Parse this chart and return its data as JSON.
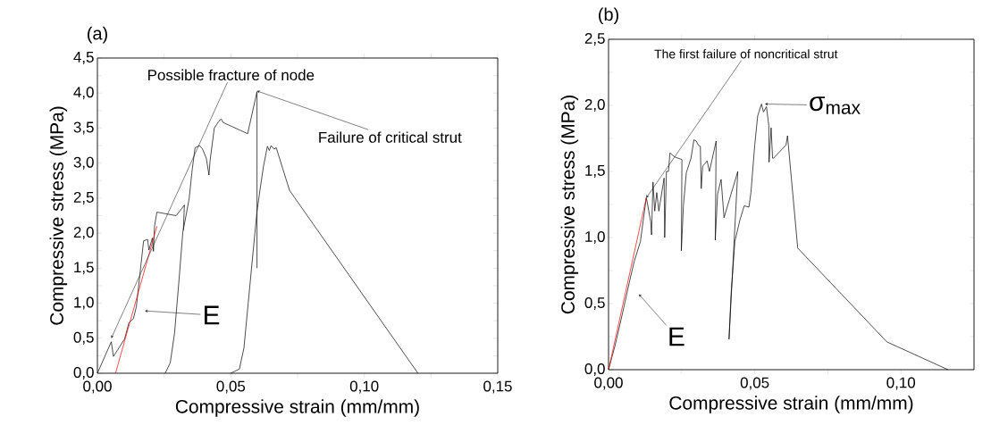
{
  "chart_data": [
    {
      "type": "line",
      "title": "(a)",
      "xlabel": "Compressive strain (mm/mm)",
      "ylabel": "Compressive stress (MPa)",
      "marker": "none",
      "line_style": "solid",
      "xlim": [
        0,
        0.15
      ],
      "ylim": [
        0,
        4.5
      ],
      "xticks": [
        {
          "value": 0,
          "label": "0,00"
        },
        {
          "value": 0.025,
          "label": null
        },
        {
          "value": 0.05,
          "label": "0,05"
        },
        {
          "value": 0.075,
          "label": null
        },
        {
          "value": 0.1,
          "label": "0,10"
        },
        {
          "value": 0.125,
          "label": null
        },
        {
          "value": 0.15,
          "label": "0,15"
        }
      ],
      "yticks": [
        {
          "value": 0,
          "label": "0,0"
        },
        {
          "value": 0.25,
          "label": null
        },
        {
          "value": 0.5,
          "label": "0,5"
        },
        {
          "value": 0.75,
          "label": null
        },
        {
          "value": 1,
          "label": "1,0"
        },
        {
          "value": 1.25,
          "label": null
        },
        {
          "value": 1.5,
          "label": "1,5"
        },
        {
          "value": 1.75,
          "label": null
        },
        {
          "value": 2,
          "label": "2,0"
        },
        {
          "value": 2.25,
          "label": null
        },
        {
          "value": 2.5,
          "label": "2,5"
        },
        {
          "value": 2.75,
          "label": null
        },
        {
          "value": 3,
          "label": "3,0"
        },
        {
          "value": 3.25,
          "label": null
        },
        {
          "value": 3.5,
          "label": "3,5"
        },
        {
          "value": 3.75,
          "label": null
        },
        {
          "value": 4,
          "label": "4,0"
        },
        {
          "value": 4.25,
          "label": null
        },
        {
          "value": 4.5,
          "label": "4,5"
        }
      ],
      "series": [
        {
          "color": "#000000",
          "x": [
            0,
            0.0052,
            0.006,
            0.0102,
            0.0118,
            0.0135,
            0.0146,
            0.0173,
            0.0188,
            0.0193,
            0.0206,
            0.021,
            0.0214,
            0.0223,
            0.0295,
            0.0326,
            0.0322
          ],
          "values": [
            0,
            0.45,
            0.24,
            0.49,
            0.72,
            0.78,
            0.95,
            1.89,
            1.91,
            1.76,
            1.93,
            1.74,
            2.1,
            2.3,
            2.25,
            2.4,
            2.04
          ]
        },
        {
          "color": "#000000",
          "x": [
            0.0254,
            0.0273,
            0.0289,
            0.0306,
            0.032,
            0.0333,
            0.0344,
            0.0355,
            0.0366,
            0.0383,
            0.0394,
            0.0408,
            0.0418,
            0.0422,
            0.0438,
            0.0455,
            0.0464,
            0.0471,
            0.0563,
            0.0598,
            0.0598
          ],
          "values": [
            0,
            0.15,
            0.57,
            1.34,
            2.01,
            2.27,
            2.5,
            2.9,
            3.22,
            3.25,
            3.2,
            3.07,
            2.83,
            3.03,
            3.5,
            3.6,
            3.63,
            3.58,
            3.42,
            4.02,
            1.5
          ]
        },
        {
          "color": "#000000",
          "x": [
            0.0499,
            0.0532,
            0.0549,
            0.0565,
            0.0582,
            0.0598,
            0.0609,
            0.0622,
            0.0637,
            0.0644,
            0.0651,
            0.0662,
            0.067,
            0.072,
            0.1201
          ],
          "values": [
            0,
            0.06,
            0.36,
            1.0,
            1.68,
            2.31,
            2.61,
            2.95,
            3.24,
            3.18,
            3.25,
            3.2,
            3.22,
            2.61,
            0
          ]
        },
        {
          "color": "#ff0000",
          "x": [
            0.0068,
            0.0223
          ],
          "values": [
            0,
            2.1
          ]
        }
      ],
      "annotations": [
        {
          "text": "Possible fracture of node",
          "x": 0.0052,
          "y": 0.5
        },
        {
          "text": "Failure of critical strut",
          "x": 0.0598,
          "y": 4.03
        },
        {
          "text": "E",
          "x": 0.0178,
          "y": 0.89
        }
      ]
    },
    {
      "type": "line",
      "title": "(b)",
      "xlabel": "Compressive strain (mm/mm)",
      "ylabel": "Compressive stress (MPa)",
      "marker": "none",
      "line_style": "solid",
      "xlim": [
        0,
        0.125
      ],
      "ylim": [
        0,
        2.5
      ],
      "xticks": [
        {
          "value": 0,
          "label": "0,00"
        },
        {
          "value": 0.025,
          "label": null
        },
        {
          "value": 0.05,
          "label": "0,05"
        },
        {
          "value": 0.075,
          "label": null
        },
        {
          "value": 0.1,
          "label": "0,10"
        }
      ],
      "yticks": [
        {
          "value": 0,
          "label": "0,0"
        },
        {
          "value": 0.25,
          "label": null
        },
        {
          "value": 0.5,
          "label": "0,5"
        },
        {
          "value": 0.75,
          "label": null
        },
        {
          "value": 1,
          "label": "1,0"
        },
        {
          "value": 1.25,
          "label": null
        },
        {
          "value": 1.5,
          "label": "1,5"
        },
        {
          "value": 1.75,
          "label": null
        },
        {
          "value": 2,
          "label": "2,0"
        },
        {
          "value": 2.25,
          "label": null
        },
        {
          "value": 2.5,
          "label": "2,5"
        }
      ],
      "series": [
        {
          "color": "#000000",
          "x": [
            0,
            0.0022,
            0.0048,
            0.0073,
            0.0088,
            0.0109,
            0.0129,
            0.0132,
            0.0144,
            0.0147,
            0.0152,
            0.0158,
            0.0165,
            0.0172,
            0.019,
            0.0192,
            0.0198,
            0.0205,
            0.021,
            0.0226,
            0.0251,
            0.0249,
            0.0256,
            0.0266,
            0.0282,
            0.0292,
            0.03,
            0.0307,
            0.0314,
            0.0317,
            0.0322,
            0.033,
            0.0337,
            0.0345,
            0.0368,
            0.0365,
            0.0373,
            0.0385,
            0.0395,
            0.0442,
            0.0412,
            0.0419,
            0.0432,
            0.0449,
            0.0464,
            0.048,
            0.0487,
            0.05,
            0.051,
            0.0523,
            0.053,
            0.054,
            0.0548,
            0.0549,
            0.0556,
            0.0561,
            0.0564,
            0.0607,
            0.0612,
            0.0647,
            0.0952,
            0.1161
          ],
          "values": [
            0,
            0.18,
            0.43,
            0.68,
            0.82,
            0.97,
            1.3,
            1.27,
            1.12,
            1.02,
            1.42,
            1.2,
            1.34,
            1.2,
            1.45,
            1.0,
            1.5,
            1.5,
            1.64,
            1.61,
            1.59,
            0.9,
            1.24,
            1.49,
            1.6,
            1.74,
            1.73,
            1.7,
            1.69,
            1.37,
            1.54,
            1.56,
            1.58,
            1.5,
            1.73,
            0.98,
            1.33,
            1.44,
            1.15,
            1.5,
            0.23,
            0.57,
            0.97,
            1.13,
            1.24,
            1.23,
            1.34,
            1.7,
            1.92,
            2.01,
            1.95,
            1.99,
            1.85,
            1.57,
            1.83,
            1.6,
            1.6,
            1.7,
            1.77,
            0.92,
            0.21,
            0
          ]
        },
        {
          "color": "#ff0000",
          "x": [
            0,
            0.0129
          ],
          "values": [
            0,
            1.3
          ]
        }
      ],
      "annotations": [
        {
          "text": "The first failure of noncritical strut",
          "x": 0.0129,
          "y": 1.3
        },
        {
          "text": "σ$_{max}$",
          "x": 0.0535,
          "y": 2.01
        },
        {
          "text": "E",
          "x": 0.0104,
          "y": 0.57
        }
      ]
    }
  ]
}
